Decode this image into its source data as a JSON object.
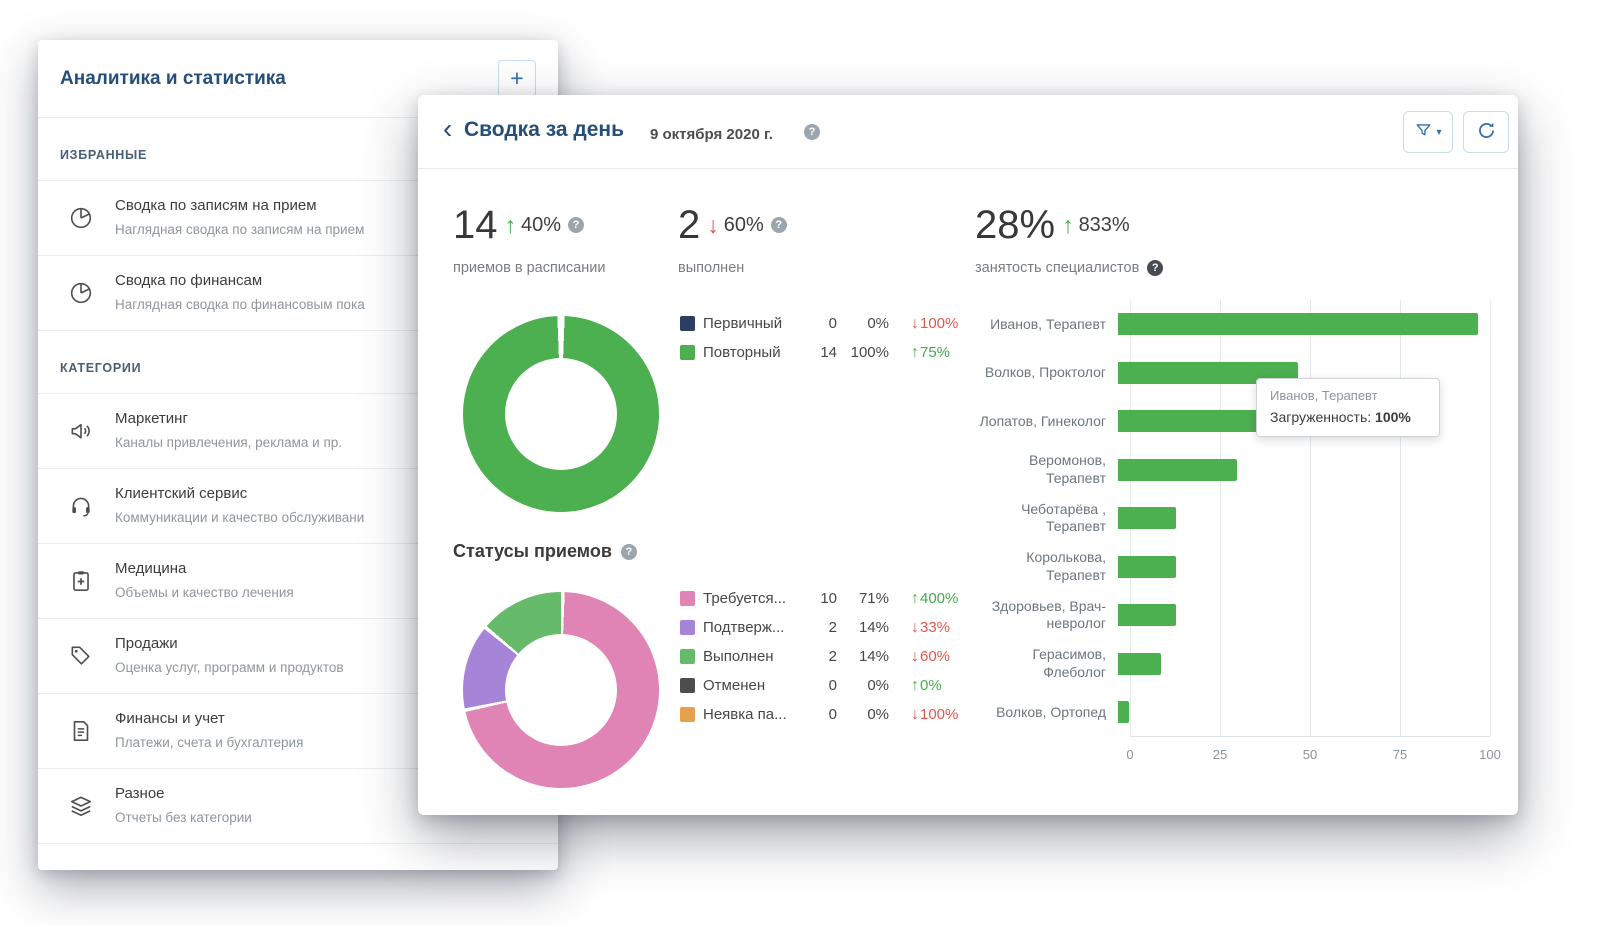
{
  "colors": {
    "accent_blue": "#2f6fae",
    "heading_navy": "#254e78",
    "green": "#4caf50",
    "red": "#e2574c"
  },
  "icons": {
    "plus": "+",
    "back": "‹",
    "help": "?",
    "caret-down": "▾",
    "arrow-up": "↑",
    "arrow-down": "↓"
  },
  "sidebar": {
    "title": "Аналитика и статистика",
    "sections": [
      {
        "label": "ИЗБРАННЫЕ",
        "items": [
          {
            "icon": "pie-chart-icon",
            "title": "Сводка по записям на прием",
            "subtitle": "Наглядная сводка по записям на прием"
          },
          {
            "icon": "pie-chart-icon",
            "title": "Сводка по финансам",
            "subtitle": "Наглядная сводка по финансовым пока"
          }
        ]
      },
      {
        "label": "КАТЕГОРИИ",
        "items": [
          {
            "icon": "megaphone-icon",
            "title": "Маркетинг",
            "subtitle": "Каналы привлечения, реклама и пр."
          },
          {
            "icon": "headset-icon",
            "title": "Клиентский сервис",
            "subtitle": "Коммуникации и качество обслуживани"
          },
          {
            "icon": "medical-clipboard-icon",
            "title": "Медицина",
            "subtitle": "Объемы и качество лечения"
          },
          {
            "icon": "tags-icon",
            "title": "Продажи",
            "subtitle": "Оценка услуг, программ и продуктов"
          },
          {
            "icon": "invoice-icon",
            "title": "Финансы и учет",
            "subtitle": "Платежи, счета и бухгалтерия"
          },
          {
            "icon": "layers-icon",
            "title": "Разное",
            "subtitle": "Отчеты без категории"
          }
        ]
      }
    ]
  },
  "report": {
    "title": "Сводка за день",
    "date": "9 октября 2020 г.",
    "statuses_title": "Статусы приемов",
    "stats": [
      {
        "value": "14",
        "trend": "up",
        "trend_value": "40%",
        "label": "приемов в расписании",
        "help_top": true,
        "help_label": false
      },
      {
        "value": "2",
        "trend": "down",
        "trend_value": "60%",
        "label": "выполнен",
        "help_top": true,
        "help_label": false
      },
      {
        "value": "28%",
        "trend": "up",
        "trend_value": "833%",
        "label": "занятость специалистов",
        "help_top": false,
        "help_label": true
      }
    ]
  },
  "tooltip": {
    "title": "Иванов, Терапевт",
    "label": "Загруженность: ",
    "value": "100%"
  },
  "chart_data": [
    {
      "type": "pie",
      "name": "visit-types",
      "donut": true,
      "segments": [
        {
          "label": "Первичный",
          "value": 0,
          "color": "#2b4060",
          "count": 0,
          "percent": "0%",
          "trend": "down",
          "trend_value": "100%"
        },
        {
          "label": "Повторный",
          "value": 100,
          "color": "#4caf50",
          "count": 14,
          "percent": "100%",
          "trend": "up",
          "trend_value": "75%"
        }
      ]
    },
    {
      "type": "pie",
      "name": "visit-statuses",
      "title": "Статусы приемов",
      "donut": true,
      "segments": [
        {
          "label": "Требуется...",
          "value": 71.4,
          "color": "#df84b5",
          "count": 10,
          "percent": "71%",
          "trend": "up",
          "trend_value": "400%"
        },
        {
          "label": "Подтверж...",
          "value": 14.3,
          "color": "#a685d8",
          "count": 2,
          "percent": "14%",
          "trend": "down",
          "trend_value": "33%"
        },
        {
          "label": "Выполнен",
          "value": 14.3,
          "color": "#66bb6a",
          "count": 2,
          "percent": "14%",
          "trend": "down",
          "trend_value": "60%"
        },
        {
          "label": "Отменен",
          "value": 0,
          "color": "#4d4d4d",
          "count": 0,
          "percent": "0%",
          "trend": "up",
          "trend_value": "0%"
        },
        {
          "label": "Неявка па...",
          "value": 0,
          "color": "#e6a14f",
          "count": 0,
          "percent": "0%",
          "trend": "down",
          "trend_value": "100%"
        }
      ]
    },
    {
      "type": "bar",
      "name": "specialists-occupancy",
      "title": "занятость специалистов",
      "orientation": "horizontal",
      "bar_color": "#4caf50",
      "categories": [
        "Иванов, Терапевт",
        "Волков, Проктолог",
        "Лопатов, Гинеколог",
        "Веромонов, Терапевт",
        "Чеботарёва , Терапевт",
        "Королькова, Терапевт",
        "Здоровьев, Врач-невролог",
        "Герасимов, Флеболог",
        "Волков, Ортопед"
      ],
      "values": [
        100,
        50,
        50,
        33,
        16,
        16,
        16,
        12,
        3
      ],
      "xlim": [
        0,
        100
      ],
      "xticks": [
        "0",
        "25",
        "50",
        "75",
        "100"
      ],
      "grid": true
    }
  ]
}
